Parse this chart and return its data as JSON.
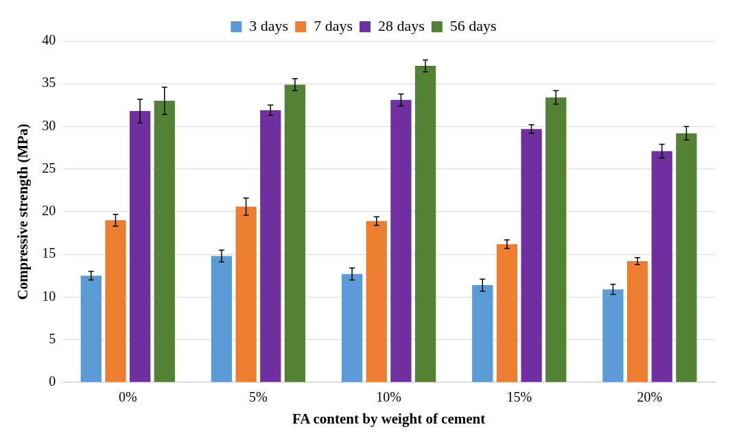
{
  "chart_data": {
    "type": "bar",
    "xlabel": "FA content by weight of cement",
    "ylabel": "Compressive strength (MPa)",
    "categories": [
      "0%",
      "5%",
      "10%",
      "15%",
      "20%"
    ],
    "series": [
      {
        "name": "3 days",
        "color": "#5b9bd5",
        "values": [
          12.5,
          14.8,
          12.7,
          11.4,
          10.9
        ],
        "errors": [
          0.5,
          0.7,
          0.7,
          0.7,
          0.6
        ]
      },
      {
        "name": "7 days",
        "color": "#ed7d31",
        "values": [
          19.0,
          20.6,
          18.9,
          16.2,
          14.2
        ],
        "errors": [
          0.7,
          1.0,
          0.5,
          0.5,
          0.4
        ]
      },
      {
        "name": "28 days",
        "color": "#7030a0",
        "values": [
          31.8,
          31.9,
          33.1,
          29.7,
          27.1
        ],
        "errors": [
          1.4,
          0.6,
          0.7,
          0.5,
          0.8
        ]
      },
      {
        "name": "56 days",
        "color": "#548235",
        "values": [
          33.0,
          34.9,
          37.1,
          33.4,
          29.2
        ],
        "errors": [
          1.6,
          0.7,
          0.7,
          0.8,
          0.8
        ]
      }
    ],
    "ylim": [
      0,
      40
    ],
    "yticks": [
      0,
      5,
      10,
      15,
      20,
      25,
      30,
      35,
      40
    ],
    "grid": "y",
    "legend": "top"
  }
}
